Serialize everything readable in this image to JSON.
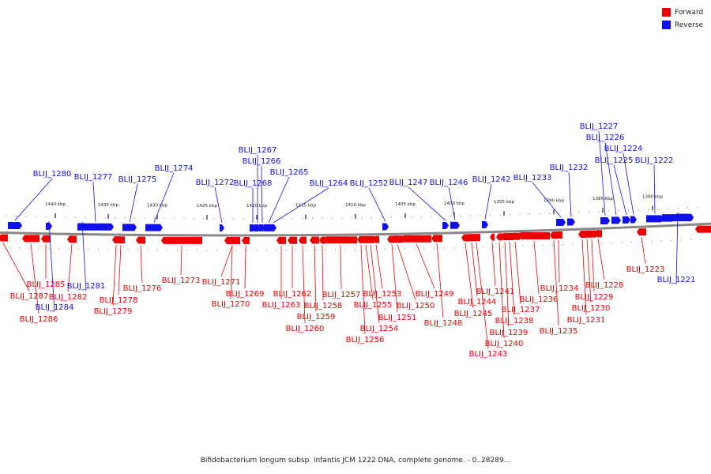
{
  "legend": [
    {
      "label": "Forward",
      "color": "#ee0000"
    },
    {
      "label": "Reverse",
      "color": "#1010ee"
    }
  ],
  "colors": {
    "forward": "#ee0000",
    "reverse": "#1010ee",
    "backbone": "#888888"
  },
  "caption": "Bifidobacterium longum subsp. infantis JCM 1222 DNA, complete genome. - 0..28289...",
  "ticks": [
    "1440 kbp",
    "1435 kbp",
    "1430 kbp",
    "1425 kbp",
    "1420 kbp",
    "1415 kbp",
    "1410 kbp",
    "1405 kbp",
    "1400 kbp",
    "1395 kbp",
    "1390 kbp",
    "1385 kbp",
    "1380 kbp"
  ],
  "genes": [
    {
      "label": "BLIJ_1287",
      "strand": "forward"
    },
    {
      "label": "BLIJ_1286",
      "strand": "forward"
    },
    {
      "label": "BLIJ_1285",
      "strand": "forward"
    },
    {
      "label": "BLIJ_1284",
      "strand": "reverse"
    },
    {
      "label": "BLIJ_1282",
      "strand": "forward"
    },
    {
      "label": "BLIJ_1281",
      "strand": "reverse"
    },
    {
      "label": "BLIJ_1280",
      "strand": "reverse"
    },
    {
      "label": "BLIJ_1279",
      "strand": "forward"
    },
    {
      "label": "BLIJ_1278",
      "strand": "forward"
    },
    {
      "label": "BLIJ_1277",
      "strand": "reverse"
    },
    {
      "label": "BLIJ_1276",
      "strand": "forward"
    },
    {
      "label": "BLIJ_1275",
      "strand": "reverse"
    },
    {
      "label": "BLIJ_1274",
      "strand": "reverse"
    },
    {
      "label": "BLIJ_1273",
      "strand": "forward"
    },
    {
      "label": "BLIJ_1272",
      "strand": "reverse"
    },
    {
      "label": "BLIJ_1271",
      "strand": "forward"
    },
    {
      "label": "BLIJ_1270",
      "strand": "forward"
    },
    {
      "label": "BLIJ_1269",
      "strand": "forward"
    },
    {
      "label": "BLIJ_1268",
      "strand": "reverse"
    },
    {
      "label": "BLIJ_1267",
      "strand": "reverse"
    },
    {
      "label": "BLIJ_1266",
      "strand": "reverse"
    },
    {
      "label": "BLIJ_1265",
      "strand": "reverse"
    },
    {
      "label": "BLIJ_1264",
      "strand": "reverse"
    },
    {
      "label": "BLIJ_1263",
      "strand": "forward"
    },
    {
      "label": "BLIJ_1262",
      "strand": "forward"
    },
    {
      "label": "BLIJ_1260",
      "strand": "forward"
    },
    {
      "label": "BLIJ_1259",
      "strand": "forward"
    },
    {
      "label": "BLIJ_1258",
      "strand": "forward"
    },
    {
      "label": "BLIJ_1257",
      "strand": "forward"
    },
    {
      "label": "BLIJ_1256",
      "strand": "forward"
    },
    {
      "label": "BLIJ_1255",
      "strand": "forward"
    },
    {
      "label": "BLIJ_1254",
      "strand": "forward"
    },
    {
      "label": "BLIJ_1253",
      "strand": "forward"
    },
    {
      "label": "BLIJ_1252",
      "strand": "reverse"
    },
    {
      "label": "BLIJ_1251",
      "strand": "forward"
    },
    {
      "label": "BLIJ_1250",
      "strand": "forward"
    },
    {
      "label": "BLIJ_1249",
      "strand": "forward"
    },
    {
      "label": "BLIJ_1248",
      "strand": "forward"
    },
    {
      "label": "BLIJ_1247",
      "strand": "reverse"
    },
    {
      "label": "BLIJ_1246",
      "strand": "reverse"
    },
    {
      "label": "BLIJ_1245",
      "strand": "forward"
    },
    {
      "label": "BLIJ_1244",
      "strand": "forward"
    },
    {
      "label": "BLIJ_1243",
      "strand": "forward"
    },
    {
      "label": "BLIJ_1242",
      "strand": "reverse"
    },
    {
      "label": "BLIJ_1241",
      "strand": "forward"
    },
    {
      "label": "BLIJ_1240",
      "strand": "forward"
    },
    {
      "label": "BLIJ_1239",
      "strand": "forward"
    },
    {
      "label": "BLIJ_1238",
      "strand": "forward"
    },
    {
      "label": "BLIJ_1237",
      "strand": "forward"
    },
    {
      "label": "BLIJ_1236",
      "strand": "forward"
    },
    {
      "label": "BLIJ_1235",
      "strand": "forward"
    },
    {
      "label": "BLIJ_1234",
      "strand": "forward"
    },
    {
      "label": "BLIJ_1233",
      "strand": "reverse"
    },
    {
      "label": "BLIJ_1232",
      "strand": "reverse"
    },
    {
      "label": "BLIJ_1231",
      "strand": "forward"
    },
    {
      "label": "BLIJ_1230",
      "strand": "forward"
    },
    {
      "label": "BLIJ_1229",
      "strand": "forward"
    },
    {
      "label": "BLIJ_1228",
      "strand": "forward"
    },
    {
      "label": "BLIJ_1227",
      "strand": "reverse"
    },
    {
      "label": "BLIJ_1226",
      "strand": "reverse"
    },
    {
      "label": "BLIJ_1225",
      "strand": "reverse"
    },
    {
      "label": "BLIJ_1224",
      "strand": "reverse"
    },
    {
      "label": "BLIJ_1223",
      "strand": "forward"
    },
    {
      "label": "BLIJ_1222",
      "strand": "reverse"
    },
    {
      "label": "BLIJ_1221",
      "strand": "reverse"
    }
  ]
}
